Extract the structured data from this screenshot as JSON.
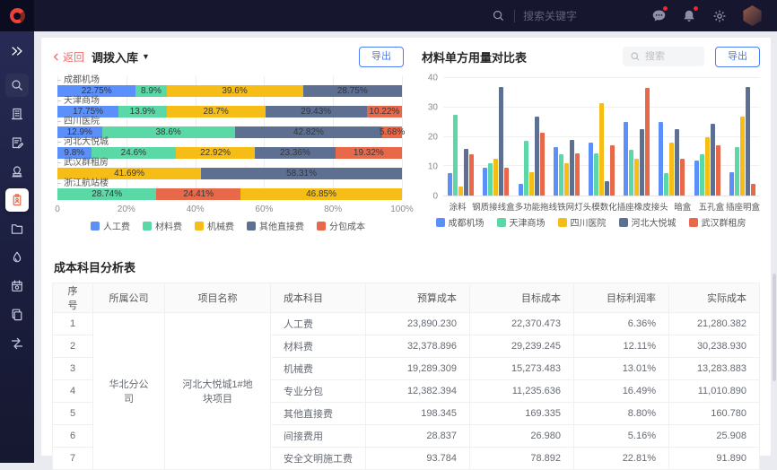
{
  "topbar": {
    "search_placeholder": "搜索关键字",
    "icons": [
      "search",
      "message",
      "bell",
      "settings",
      "avatar"
    ]
  },
  "sidebar": {
    "items": [
      {
        "icon": "collapse"
      },
      {
        "icon": "search",
        "boxed": true
      },
      {
        "icon": "building"
      },
      {
        "icon": "form"
      },
      {
        "icon": "stamp"
      },
      {
        "icon": "inventory",
        "active": true
      },
      {
        "icon": "folder"
      },
      {
        "icon": "drop"
      },
      {
        "icon": "schedule"
      },
      {
        "icon": "copy"
      },
      {
        "icon": "flow"
      }
    ]
  },
  "left_panel": {
    "back_label": "返回",
    "title": "调拨入库",
    "export_label": "导出"
  },
  "right_panel": {
    "title": "材料单方用量对比表",
    "search_placeholder": "搜索",
    "export_label": "导出"
  },
  "chart_data": [
    {
      "type": "bar",
      "orientation": "horizontal-stacked",
      "title": "调拨入库",
      "unit": "%",
      "xlim": [
        0,
        100
      ],
      "x_ticks": [
        "0",
        "20%",
        "40%",
        "60%",
        "80%",
        "100%"
      ],
      "grid": true,
      "legend_position": "bottom",
      "legend": [
        {
          "name": "人工费",
          "color": "#5B8FF9"
        },
        {
          "name": "材料费",
          "color": "#5AD8A6"
        },
        {
          "name": "机械费",
          "color": "#F6BD16"
        },
        {
          "name": "其他直接费",
          "color": "#5D7092"
        },
        {
          "name": "分包成本",
          "color": "#E8684A"
        }
      ],
      "categories": [
        "成都机场",
        "天津商场",
        "四川医院",
        "河北大悦城",
        "武汉群租房",
        "浙江航站楼"
      ],
      "rows": [
        {
          "category": "成都机场",
          "segments": [
            {
              "series": "人工费",
              "value": 22.75
            },
            {
              "series": "材料费",
              "value": 8.9
            },
            {
              "series": "机械费",
              "value": 39.6
            },
            {
              "series": "其他直接费",
              "value": 28.75
            }
          ]
        },
        {
          "category": "天津商场",
          "segments": [
            {
              "series": "人工费",
              "value": 17.75
            },
            {
              "series": "材料费",
              "value": 13.9
            },
            {
              "series": "机械费",
              "value": 28.7
            },
            {
              "series": "其他直接费",
              "value": 29.43
            },
            {
              "series": "分包成本",
              "value": 10.22
            }
          ]
        },
        {
          "category": "四川医院",
          "segments": [
            {
              "series": "人工费",
              "value": 12.9
            },
            {
              "series": "材料费",
              "value": 38.6
            },
            {
              "series": "其他直接费",
              "value": 42.82
            },
            {
              "series": "分包成本",
              "value": 5.68
            }
          ]
        },
        {
          "category": "河北大悦城",
          "segments": [
            {
              "series": "人工费",
              "value": 9.8
            },
            {
              "series": "材料费",
              "value": 24.6
            },
            {
              "series": "机械费",
              "value": 22.92
            },
            {
              "series": "其他直接费",
              "value": 23.36
            },
            {
              "series": "分包成本",
              "value": 19.32
            }
          ]
        },
        {
          "category": "武汉群租房",
          "segments": [
            {
              "series": "机械费",
              "value": 41.69
            },
            {
              "series": "其他直接费",
              "value": 58.31
            }
          ]
        },
        {
          "category": "浙江航站楼",
          "segments": [
            {
              "series": "材料费",
              "value": 28.74
            },
            {
              "series": "分包成本",
              "value": 24.41
            },
            {
              "series": "机械费",
              "value": 46.85
            }
          ]
        }
      ]
    },
    {
      "type": "bar",
      "orientation": "vertical-grouped",
      "title": "材料单方用量对比表",
      "ylim": [
        0,
        40
      ],
      "y_ticks": [
        0,
        10,
        20,
        30,
        40
      ],
      "grid": true,
      "legend_position": "bottom",
      "categories": [
        "涂料",
        "钢质接线盒",
        "多功能拖线",
        "铁网灯头",
        "模数化插座",
        "橡皮接头",
        "暗盒",
        "五孔盒",
        "插座明盒"
      ],
      "series": [
        {
          "name": "成都机场",
          "color": "#5B8FF9",
          "values": [
            7.5,
            9.5,
            4,
            16.5,
            18,
            25,
            25,
            12,
            8
          ]
        },
        {
          "name": "天津商场",
          "color": "#5AD8A6",
          "values": [
            27.5,
            11,
            18.5,
            14,
            14.5,
            15.5,
            7.5,
            14,
            16.5
          ]
        },
        {
          "name": "四川医院",
          "color": "#F6BD16",
          "values": [
            3,
            12.5,
            8,
            11,
            31.5,
            12.5,
            18,
            20,
            27
          ]
        },
        {
          "name": "河北大悦城",
          "color": "#5D7092",
          "values": [
            16,
            37,
            27,
            19,
            5,
            22.5,
            22.5,
            24.5,
            37
          ]
        },
        {
          "name": "武汉群租房",
          "color": "#E8684A",
          "values": [
            14,
            9.5,
            21.5,
            14.5,
            17,
            36.5,
            12.5,
            17,
            4
          ]
        }
      ]
    }
  ],
  "table": {
    "title": "成本科目分析表",
    "columns": [
      "序号",
      "所属公司",
      "项目名称",
      "成本科目",
      "预算成本",
      "目标成本",
      "目标利润率",
      "实际成本"
    ],
    "company": "华北分公司",
    "project": "河北大悦城1#地块项目",
    "rows": [
      {
        "no": "1",
        "subject": "人工费",
        "budget": "23,890.230",
        "target": "22,370.473",
        "margin": "6.36%",
        "actual": "21,280.382"
      },
      {
        "no": "2",
        "subject": "材料费",
        "budget": "32,378.896",
        "target": "29,239.245",
        "margin": "12.11%",
        "actual": "30,238.930"
      },
      {
        "no": "3",
        "subject": "机械费",
        "budget": "19,289.309",
        "target": "15,273.483",
        "margin": "13.01%",
        "actual": "13,283.883"
      },
      {
        "no": "4",
        "subject": "专业分包",
        "budget": "12,382.394",
        "target": "11,235.636",
        "margin": "16.49%",
        "actual": "11,010.890"
      },
      {
        "no": "5",
        "subject": "其他直接费",
        "budget": "198.345",
        "target": "169.335",
        "margin": "8.80%",
        "actual": "160.780"
      },
      {
        "no": "6",
        "subject": "间接费用",
        "budget": "28.837",
        "target": "26.980",
        "margin": "5.16%",
        "actual": "25.908"
      },
      {
        "no": "7",
        "subject": "安全文明施工费",
        "budget": "93.784",
        "target": "78.892",
        "margin": "22.81%",
        "actual": "91.890"
      }
    ]
  }
}
